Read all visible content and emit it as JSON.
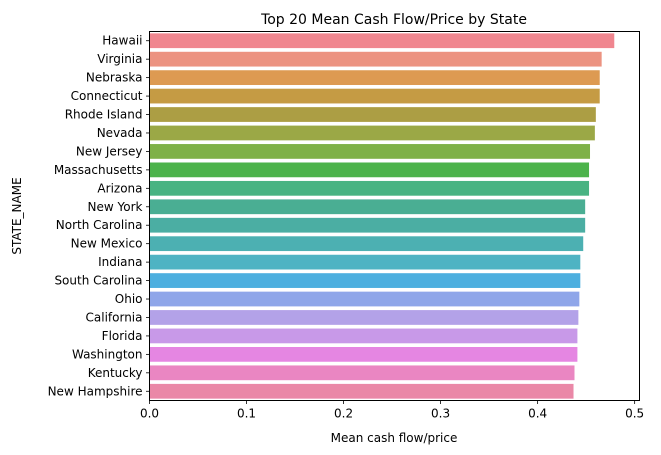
{
  "chart_data": {
    "type": "bar",
    "orientation": "horizontal",
    "title": "Top 20 Mean Cash Flow/Price by State",
    "xlabel": "Mean cash flow/price",
    "ylabel": "STATE_NAME",
    "xlim": [
      0,
      0.505
    ],
    "xticks": [
      0.0,
      0.1,
      0.2,
      0.3,
      0.4,
      0.5
    ],
    "xtick_labels": [
      "0.0",
      "0.1",
      "0.2",
      "0.3",
      "0.4",
      "0.5"
    ],
    "grid": false,
    "legend": "none",
    "categories": [
      "Hawaii",
      "Virginia",
      "Nebraska",
      "Connecticut",
      "Rhode Island",
      "Nevada",
      "New Jersey",
      "Massachusetts",
      "Arizona",
      "New York",
      "North Carolina",
      "New Mexico",
      "Indiana",
      "South Carolina",
      "Ohio",
      "California",
      "Florida",
      "Washington",
      "Kentucky",
      "New Hampshire"
    ],
    "values": [
      0.479,
      0.466,
      0.464,
      0.464,
      0.46,
      0.459,
      0.454,
      0.453,
      0.453,
      0.449,
      0.449,
      0.447,
      0.444,
      0.444,
      0.443,
      0.442,
      0.441,
      0.441,
      0.438,
      0.437
    ],
    "colors": [
      "#f0868f",
      "#ec9381",
      "#dd9a52",
      "#c59b44",
      "#ac9e44",
      "#9ba846",
      "#7fb148",
      "#4cb34b",
      "#48b382",
      "#4aae93",
      "#4baea3",
      "#4cb0b2",
      "#4eb3c3",
      "#4dafdf",
      "#8fa6e9",
      "#b3a2e8",
      "#c899e8",
      "#e586e2",
      "#ea86c2",
      "#ea88a7"
    ]
  }
}
